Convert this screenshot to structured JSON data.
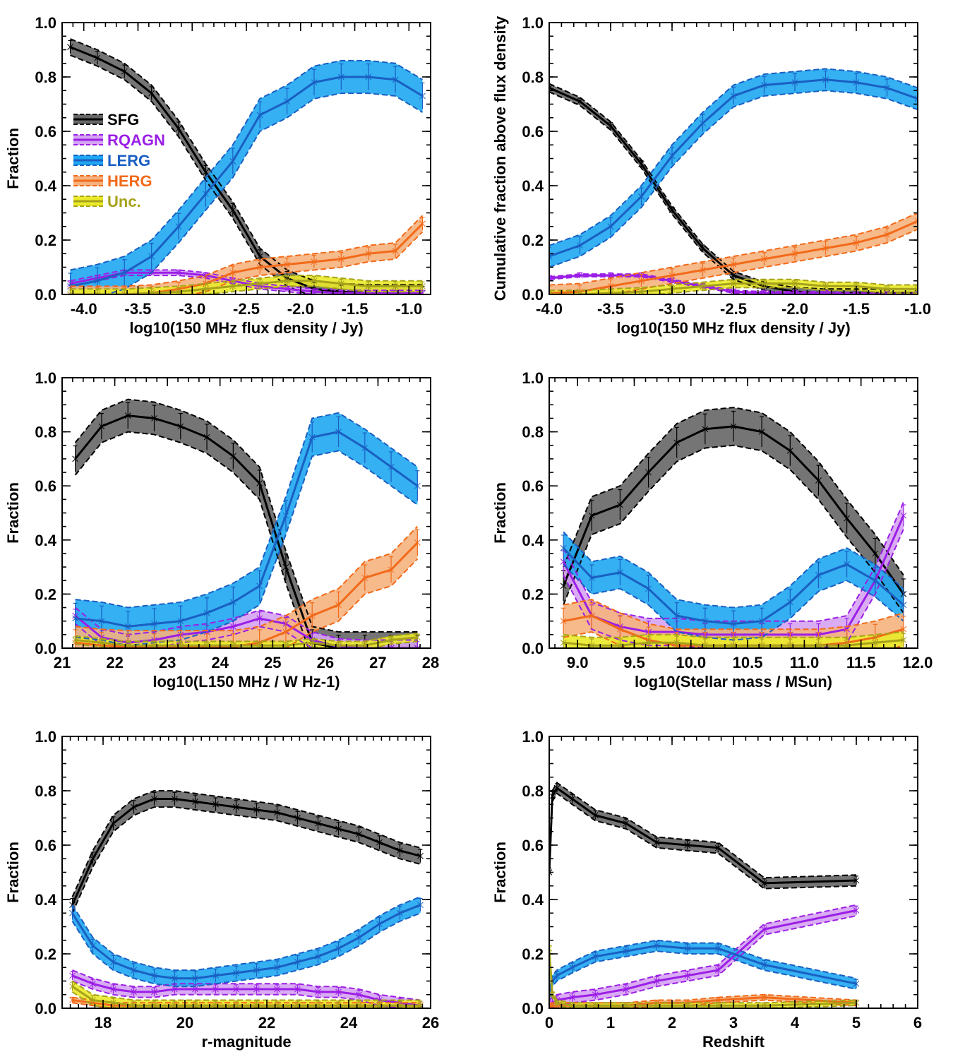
{
  "colors": {
    "SFG": {
      "line": "#000000",
      "fill": "#666666"
    },
    "RQAGN": {
      "line": "#9b1fe6",
      "fill": "#d6a3f2"
    },
    "LERG": {
      "line": "#1a5fc2",
      "fill": "#1ea7f2"
    },
    "HERG": {
      "line": "#f26a1a",
      "fill": "#f5b27e"
    },
    "Unc.": {
      "line": "#a6a21a",
      "fill": "#eaea2a"
    }
  },
  "legend": [
    "SFG",
    "RQAGN",
    "LERG",
    "HERG",
    "Unc."
  ],
  "chart_data": [
    {
      "type": "line",
      "xlabel": "log10(150 MHz flux density / Jy)",
      "ylabel": "Fraction",
      "xlim": [
        -4.2,
        -0.8
      ],
      "ylim": [
        0,
        1.0
      ],
      "xticks": [
        "-4.0",
        "-3.5",
        "-3.0",
        "-2.5",
        "-2.0",
        "-1.5",
        "-1.0"
      ],
      "yticks": [
        "0.0",
        "0.2",
        "0.4",
        "0.6",
        "0.8",
        "1.0"
      ],
      "x": [
        -4.125,
        -3.875,
        -3.625,
        -3.375,
        -3.125,
        -2.875,
        -2.625,
        -2.375,
        -2.125,
        -1.875,
        -1.625,
        -1.375,
        -1.125,
        -0.875
      ],
      "series": [
        {
          "name": "SFG",
          "values": [
            0.91,
            0.87,
            0.82,
            0.74,
            0.61,
            0.45,
            0.31,
            0.14,
            0.06,
            0.02,
            0.01,
            0.005,
            0.005,
            0.005
          ],
          "band": 0.03
        },
        {
          "name": "RQAGN",
          "values": [
            0.04,
            0.06,
            0.08,
            0.08,
            0.08,
            0.07,
            0.05,
            0.03,
            0.02,
            0.01,
            0.005,
            0.005,
            0.005,
            0.005
          ],
          "band": 0.01
        },
        {
          "name": "LERG",
          "values": [
            0.03,
            0.05,
            0.08,
            0.14,
            0.25,
            0.37,
            0.49,
            0.66,
            0.71,
            0.78,
            0.8,
            0.8,
            0.79,
            0.73
          ],
          "band": 0.06
        },
        {
          "name": "HERG",
          "values": [
            0.0,
            0.0,
            0.0,
            0.005,
            0.02,
            0.04,
            0.08,
            0.1,
            0.11,
            0.12,
            0.13,
            0.15,
            0.16,
            0.26
          ],
          "band": 0.03
        },
        {
          "name": "Unc.",
          "values": [
            0.0,
            0.0,
            0.0,
            0.005,
            0.01,
            0.02,
            0.03,
            0.04,
            0.05,
            0.05,
            0.04,
            0.03,
            0.03,
            0.03
          ],
          "band": 0.02
        }
      ]
    },
    {
      "type": "line",
      "xlabel": "log10(150 MHz flux density / Jy)",
      "ylabel": "Cumulative fraction above flux density",
      "xlim": [
        -4.0,
        -1.0
      ],
      "ylim": [
        0,
        1.0
      ],
      "xticks": [
        "-4.0",
        "-3.5",
        "-3.0",
        "-2.5",
        "-2.0",
        "-1.5",
        "-1.0"
      ],
      "yticks": [
        "0.0",
        "0.2",
        "0.4",
        "0.6",
        "0.8",
        "1.0"
      ],
      "x": [
        -4.0,
        -3.75,
        -3.5,
        -3.25,
        -3.0,
        -2.75,
        -2.5,
        -2.25,
        -2.0,
        -1.75,
        -1.5,
        -1.25,
        -1.0
      ],
      "series": [
        {
          "name": "SFG",
          "values": [
            0.76,
            0.71,
            0.62,
            0.48,
            0.31,
            0.17,
            0.07,
            0.03,
            0.01,
            0.005,
            0.005,
            0.005,
            0.005
          ],
          "band": 0.015
        },
        {
          "name": "RQAGN",
          "values": [
            0.06,
            0.07,
            0.07,
            0.07,
            0.05,
            0.03,
            0.01,
            0.005,
            0.005,
            0.005,
            0.0,
            0.0,
            0.0
          ],
          "band": 0.005
        },
        {
          "name": "LERG",
          "values": [
            0.14,
            0.18,
            0.25,
            0.36,
            0.51,
            0.63,
            0.73,
            0.77,
            0.78,
            0.79,
            0.78,
            0.76,
            0.72
          ],
          "band": 0.04
        },
        {
          "name": "HERG",
          "values": [
            0.005,
            0.01,
            0.03,
            0.05,
            0.07,
            0.09,
            0.11,
            0.13,
            0.15,
            0.17,
            0.19,
            0.22,
            0.27
          ],
          "band": 0.03
        },
        {
          "name": "Unc.",
          "values": [
            0.0,
            0.0,
            0.005,
            0.01,
            0.02,
            0.03,
            0.04,
            0.04,
            0.04,
            0.03,
            0.03,
            0.02,
            0.02
          ],
          "band": 0.015
        }
      ]
    },
    {
      "type": "line",
      "xlabel": "log10(L150 MHz / W Hz-1)",
      "ylabel": "Fraction",
      "xlim": [
        21,
        28
      ],
      "ylim": [
        0,
        1.0
      ],
      "xticks": [
        "21",
        "22",
        "23",
        "24",
        "25",
        "26",
        "27",
        "28"
      ],
      "yticks": [
        "0.0",
        "0.2",
        "0.4",
        "0.6",
        "0.8",
        "1.0"
      ],
      "x": [
        21.25,
        21.75,
        22.25,
        22.75,
        23.25,
        23.75,
        24.25,
        24.75,
        25.25,
        25.75,
        26.25,
        26.75,
        27.25,
        27.75
      ],
      "series": [
        {
          "name": "SFG",
          "values": [
            0.7,
            0.82,
            0.86,
            0.85,
            0.82,
            0.78,
            0.71,
            0.61,
            0.3,
            0.02,
            0.0,
            0.0,
            0.0,
            0.0
          ],
          "band": 0.06
        },
        {
          "name": "RQAGN",
          "values": [
            0.12,
            0.04,
            0.02,
            0.03,
            0.05,
            0.06,
            0.08,
            0.11,
            0.09,
            0.03,
            0.005,
            0.0,
            0.0,
            0.0
          ],
          "band": 0.03
        },
        {
          "name": "LERG",
          "values": [
            0.11,
            0.1,
            0.08,
            0.09,
            0.1,
            0.13,
            0.17,
            0.23,
            0.49,
            0.78,
            0.8,
            0.74,
            0.67,
            0.6
          ],
          "band": 0.07
        },
        {
          "name": "HERG",
          "values": [
            0.02,
            0.01,
            0.005,
            0.005,
            0.005,
            0.005,
            0.005,
            0.02,
            0.06,
            0.12,
            0.16,
            0.26,
            0.29,
            0.39
          ],
          "band": 0.06
        },
        {
          "name": "Unc.",
          "values": [
            0.03,
            0.02,
            0.01,
            0.01,
            0.01,
            0.01,
            0.01,
            0.01,
            0.01,
            0.02,
            0.01,
            0.01,
            0.03,
            0.04
          ],
          "band": 0.015
        }
      ]
    },
    {
      "type": "line",
      "xlabel": "log10(Stellar mass / MSun)",
      "ylabel": "Fraction",
      "xlim": [
        8.75,
        12.0
      ],
      "ylim": [
        0,
        1.0
      ],
      "xticks": [
        "9.0",
        "9.5",
        "10.0",
        "10.5",
        "11.0",
        "11.5",
        "12.0"
      ],
      "yticks": [
        "0.0",
        "0.2",
        "0.4",
        "0.6",
        "0.8",
        "1.0"
      ],
      "x": [
        8.875,
        9.125,
        9.375,
        9.625,
        9.875,
        10.125,
        10.375,
        10.625,
        10.875,
        11.125,
        11.375,
        11.625,
        11.875
      ],
      "series": [
        {
          "name": "SFG",
          "values": [
            0.23,
            0.49,
            0.53,
            0.65,
            0.76,
            0.81,
            0.82,
            0.8,
            0.73,
            0.62,
            0.48,
            0.35,
            0.2
          ],
          "band": 0.07
        },
        {
          "name": "RQAGN",
          "values": [
            0.32,
            0.12,
            0.08,
            0.06,
            0.06,
            0.05,
            0.05,
            0.05,
            0.05,
            0.05,
            0.07,
            0.25,
            0.49
          ],
          "band": 0.05
        },
        {
          "name": "LERG",
          "values": [
            0.37,
            0.26,
            0.28,
            0.22,
            0.12,
            0.1,
            0.09,
            0.1,
            0.17,
            0.27,
            0.31,
            0.25,
            0.16
          ],
          "band": 0.06
        },
        {
          "name": "HERG",
          "values": [
            0.1,
            0.12,
            0.07,
            0.03,
            0.01,
            0.01,
            0.01,
            0.01,
            0.01,
            0.01,
            0.02,
            0.04,
            0.07
          ],
          "band": 0.06
        },
        {
          "name": "Unc.",
          "values": [
            0.02,
            0.01,
            0.01,
            0.02,
            0.02,
            0.01,
            0.01,
            0.01,
            0.01,
            0.01,
            0.01,
            0.02,
            0.03
          ],
          "band": 0.03
        }
      ]
    },
    {
      "type": "line",
      "xlabel": "r-magnitude",
      "ylabel": "Fraction",
      "xlim": [
        17,
        26
      ],
      "ylim": [
        0,
        1.0
      ],
      "xticks": [
        "18",
        "20",
        "22",
        "24",
        "26"
      ],
      "yticks": [
        "0.0",
        "0.2",
        "0.4",
        "0.6",
        "0.8",
        "1.0"
      ],
      "x": [
        17.25,
        17.75,
        18.25,
        18.75,
        19.25,
        19.75,
        20.25,
        20.75,
        21.25,
        21.75,
        22.25,
        22.75,
        23.25,
        23.75,
        24.25,
        24.75,
        25.25,
        25.75
      ],
      "series": [
        {
          "name": "SFG",
          "values": [
            0.38,
            0.55,
            0.68,
            0.74,
            0.77,
            0.77,
            0.76,
            0.75,
            0.74,
            0.73,
            0.72,
            0.7,
            0.68,
            0.66,
            0.64,
            0.61,
            0.58,
            0.56
          ],
          "band": 0.03
        },
        {
          "name": "RQAGN",
          "values": [
            0.12,
            0.09,
            0.07,
            0.06,
            0.06,
            0.07,
            0.07,
            0.07,
            0.07,
            0.07,
            0.07,
            0.07,
            0.06,
            0.06,
            0.05,
            0.03,
            0.02,
            0.01
          ],
          "band": 0.02
        },
        {
          "name": "LERG",
          "values": [
            0.35,
            0.23,
            0.17,
            0.14,
            0.12,
            0.11,
            0.11,
            0.12,
            0.13,
            0.14,
            0.15,
            0.17,
            0.19,
            0.22,
            0.26,
            0.31,
            0.35,
            0.38
          ],
          "band": 0.03
        },
        {
          "name": "HERG",
          "values": [
            0.03,
            0.02,
            0.01,
            0.01,
            0.01,
            0.01,
            0.01,
            0.01,
            0.01,
            0.01,
            0.01,
            0.01,
            0.01,
            0.01,
            0.01,
            0.01,
            0.01,
            0.01
          ],
          "band": 0.01
        },
        {
          "name": "Unc.",
          "values": [
            0.08,
            0.03,
            0.02,
            0.01,
            0.01,
            0.01,
            0.01,
            0.01,
            0.01,
            0.01,
            0.01,
            0.01,
            0.01,
            0.01,
            0.01,
            0.01,
            0.01,
            0.01
          ],
          "band": 0.02
        }
      ]
    },
    {
      "type": "line",
      "xlabel": "Redshift",
      "ylabel": "Fraction",
      "xlim": [
        0,
        6
      ],
      "ylim": [
        0,
        1.0
      ],
      "xticks": [
        "0",
        "1",
        "2",
        "3",
        "4",
        "5",
        "6"
      ],
      "yticks": [
        "0.0",
        "0.2",
        "0.4",
        "0.6",
        "0.8",
        "1.0"
      ],
      "x": [
        0.0,
        0.05,
        0.125,
        0.375,
        0.75,
        1.25,
        1.75,
        2.25,
        2.75,
        3.5,
        5.0
      ],
      "series": [
        {
          "name": "SFG",
          "values": [
            0.5,
            0.78,
            0.81,
            0.77,
            0.71,
            0.68,
            0.61,
            0.6,
            0.59,
            0.46,
            0.47
          ],
          "band": 0.02
        },
        {
          "name": "RQAGN",
          "values": [
            0.01,
            0.02,
            0.03,
            0.04,
            0.05,
            0.07,
            0.1,
            0.12,
            0.14,
            0.29,
            0.36
          ],
          "band": 0.02
        },
        {
          "name": "LERG",
          "values": [
            0.05,
            0.1,
            0.12,
            0.15,
            0.19,
            0.21,
            0.23,
            0.22,
            0.22,
            0.16,
            0.09
          ],
          "band": 0.02
        },
        {
          "name": "HERG",
          "values": [
            0.0,
            0.01,
            0.01,
            0.01,
            0.01,
            0.01,
            0.02,
            0.02,
            0.03,
            0.04,
            0.02
          ],
          "band": 0.01
        },
        {
          "name": "Unc.",
          "values": [
            0.22,
            0.05,
            0.02,
            0.01,
            0.01,
            0.01,
            0.01,
            0.01,
            0.01,
            0.01,
            0.02
          ],
          "band": 0.01
        }
      ]
    }
  ]
}
